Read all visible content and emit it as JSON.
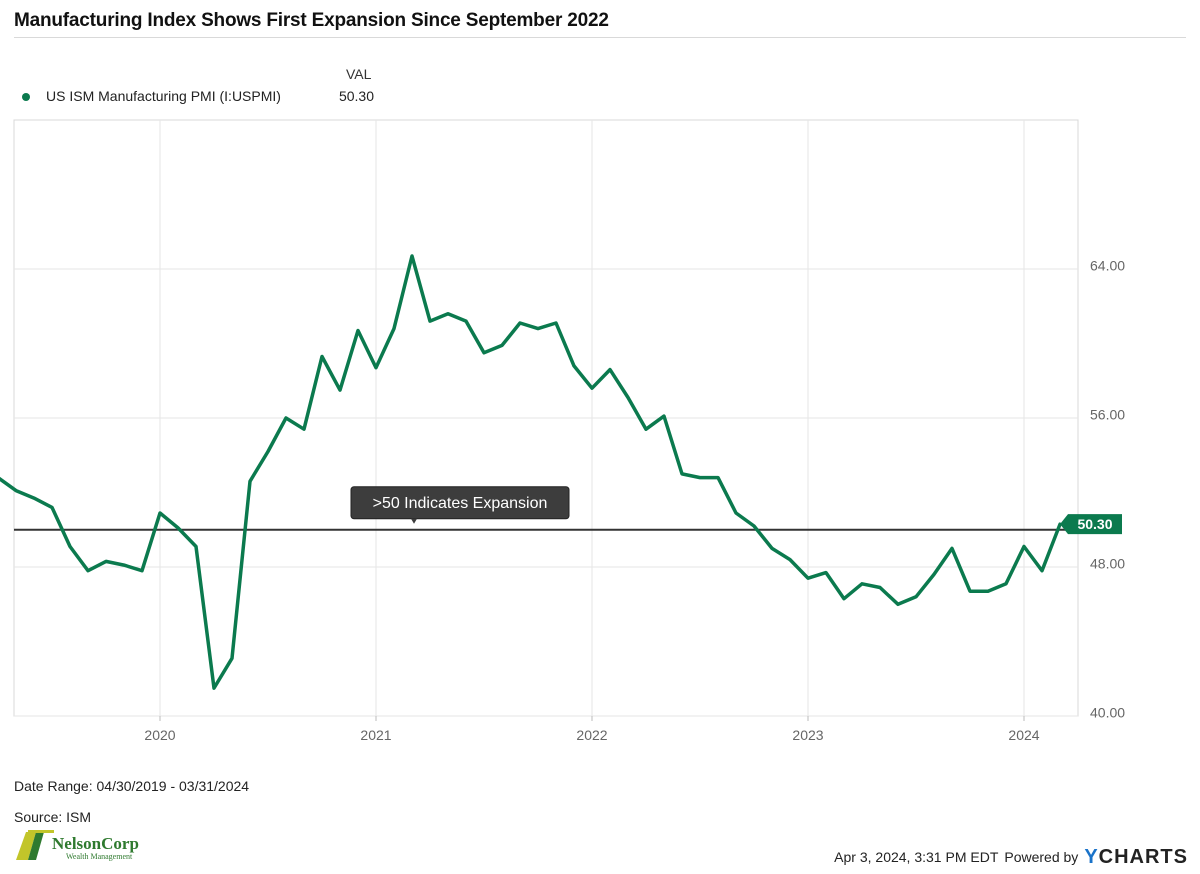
{
  "title": "Manufacturing Index Shows First Expansion Since September 2022",
  "legend": {
    "header": "VAL",
    "series_name": "US ISM Manufacturing PMI (I:USPMI)",
    "series_value": "50.30"
  },
  "footer": {
    "date_range": "Date Range: 04/30/2019 - 03/31/2024",
    "source": "Source: ISM",
    "timestamp": "Apr 3, 2024, 3:31 PM EDT",
    "powered_by": "Powered by",
    "brand_y": "Y",
    "brand_rest": "CHARTS"
  },
  "logo": {
    "name": "NelsonCorp",
    "subtitle": "Wealth Management"
  },
  "colors": {
    "series": "#0b7a4e",
    "reference_line": "#333333",
    "annotation_bg": "#3d3d3d",
    "grid": "#e6e6e6",
    "axis_text": "#666666"
  },
  "chart_data": {
    "type": "line",
    "title": "Manufacturing Index Shows First Expansion Since September 2022",
    "x_start": "2019-04",
    "x_labels": [
      "2020",
      "2021",
      "2022",
      "2023",
      "2024"
    ],
    "y_ticks": [
      "40.00",
      "48.00",
      "56.00",
      "64.00"
    ],
    "ylim": [
      40,
      72
    ],
    "grid": true,
    "series": [
      {
        "name": "US ISM Manufacturing PMI (I:USPMI)",
        "last_value_label": "50.30",
        "dates": [
          "2019-04",
          "2019-05",
          "2019-06",
          "2019-07",
          "2019-08",
          "2019-09",
          "2019-10",
          "2019-11",
          "2019-12",
          "2020-01",
          "2020-02",
          "2020-03",
          "2020-04",
          "2020-05",
          "2020-06",
          "2020-07",
          "2020-08",
          "2020-09",
          "2020-10",
          "2020-11",
          "2020-12",
          "2021-01",
          "2021-02",
          "2021-03",
          "2021-04",
          "2021-05",
          "2021-06",
          "2021-07",
          "2021-08",
          "2021-09",
          "2021-10",
          "2021-11",
          "2021-12",
          "2022-01",
          "2022-02",
          "2022-03",
          "2022-04",
          "2022-05",
          "2022-06",
          "2022-07",
          "2022-08",
          "2022-09",
          "2022-10",
          "2022-11",
          "2022-12",
          "2023-01",
          "2023-02",
          "2023-03",
          "2023-04",
          "2023-05",
          "2023-06",
          "2023-07",
          "2023-08",
          "2023-09",
          "2023-10",
          "2023-11",
          "2023-12",
          "2024-01",
          "2024-02",
          "2024-03"
        ],
        "values": [
          52.8,
          52.1,
          51.7,
          51.2,
          49.1,
          47.8,
          48.3,
          48.1,
          47.8,
          50.9,
          50.1,
          49.1,
          41.5,
          43.1,
          52.6,
          54.2,
          56.0,
          55.4,
          59.3,
          57.5,
          60.7,
          58.7,
          60.8,
          64.7,
          61.2,
          61.6,
          61.2,
          59.5,
          59.9,
          61.1,
          60.8,
          61.1,
          58.8,
          57.6,
          58.6,
          57.1,
          55.4,
          56.1,
          53.0,
          52.8,
          52.8,
          50.9,
          50.2,
          49.0,
          48.4,
          47.4,
          47.7,
          46.3,
          47.1,
          46.9,
          46.0,
          46.4,
          47.6,
          49.0,
          46.7,
          46.7,
          47.1,
          49.1,
          47.8,
          50.3
        ]
      }
    ],
    "reference_line": {
      "value": 50,
      "label": ">50 Indicates Expansion"
    }
  }
}
